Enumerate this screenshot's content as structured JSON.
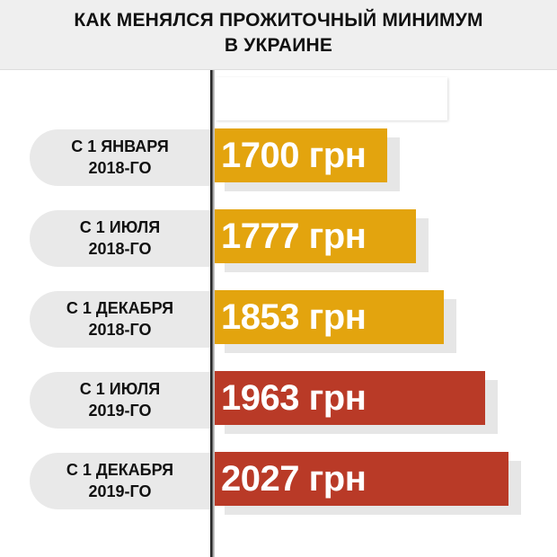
{
  "title": {
    "line1": "КАК МЕНЯЛСЯ ПРОЖИТОЧНЫЙ МИНИМУМ",
    "line2": "В УКРАИНЕ"
  },
  "colors": {
    "orange": "#E3A40E",
    "red": "#B93A27"
  },
  "chart_data": {
    "type": "bar",
    "orientation": "horizontal",
    "title": "КАК МЕНЯЛСЯ ПРОЖИТОЧНЫЙ МИНИМУМ В УКРАИНЕ",
    "unit": "грн",
    "categories": [
      [
        "С 1 ЯНВАРЯ",
        "2018-ГО"
      ],
      [
        "С 1 ИЮЛЯ",
        "2018-ГО"
      ],
      [
        "С 1 ДЕКАБРЯ",
        "2018-ГО"
      ],
      [
        "С 1 ИЮЛЯ",
        "2019-ГО"
      ],
      [
        "С 1 ДЕКАБРЯ",
        "2019-ГО"
      ]
    ],
    "values": [
      1700,
      1777,
      1853,
      1963,
      2027
    ],
    "value_labels": [
      "1700 грн",
      "1777 грн",
      "1853 грн",
      "1963 грн",
      "2027 грн"
    ],
    "bar_colors": [
      "#E3A40E",
      "#E3A40E",
      "#E3A40E",
      "#B93A27",
      "#B93A27"
    ]
  }
}
